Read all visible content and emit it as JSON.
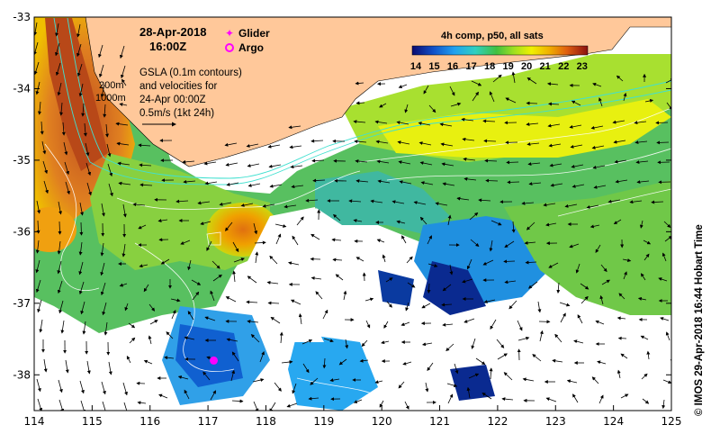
{
  "chart_data": {
    "type": "map",
    "title_date": "28-Apr-2018",
    "title_time": "16:00Z",
    "x_ticks": [
      "114",
      "115",
      "116",
      "117",
      "118",
      "119",
      "120",
      "121",
      "122",
      "123",
      "124",
      "125"
    ],
    "y_ticks": [
      "-33",
      "-34",
      "-35",
      "-36",
      "-37",
      "-38"
    ],
    "xlim": [
      114,
      125
    ],
    "ylim": [
      -38.5,
      -33
    ],
    "legend": {
      "glider": "Glider",
      "argo": "Argo"
    },
    "annotation": {
      "line1": "GSLA (0.1m contours)",
      "line2": "and velocities for",
      "line3": "24-Apr 00:00Z",
      "line4": "0.5m/s (1kt 24h)"
    },
    "isobaths": {
      "shallow": "200m",
      "deep": "1000m"
    },
    "colorbar": {
      "title": "4h comp, p50, all sats",
      "ticks": [
        "14",
        "15",
        "16",
        "17",
        "18",
        "19",
        "20",
        "21",
        "22",
        "23"
      ],
      "range": [
        14,
        23.5
      ]
    },
    "argo_position": {
      "lon": 117.1,
      "lat": -37.8
    },
    "credit": "© IMOS 29-Apr-2018 16:44 Hobart Time"
  },
  "colors": {
    "land": "#ffc89a",
    "no_data": "#ffffff",
    "glider_marker": "#ff00ff",
    "argo_marker": "#ff00ff",
    "isobath_200": "#40e0d0",
    "isobath_1000": "#40e0d0"
  }
}
